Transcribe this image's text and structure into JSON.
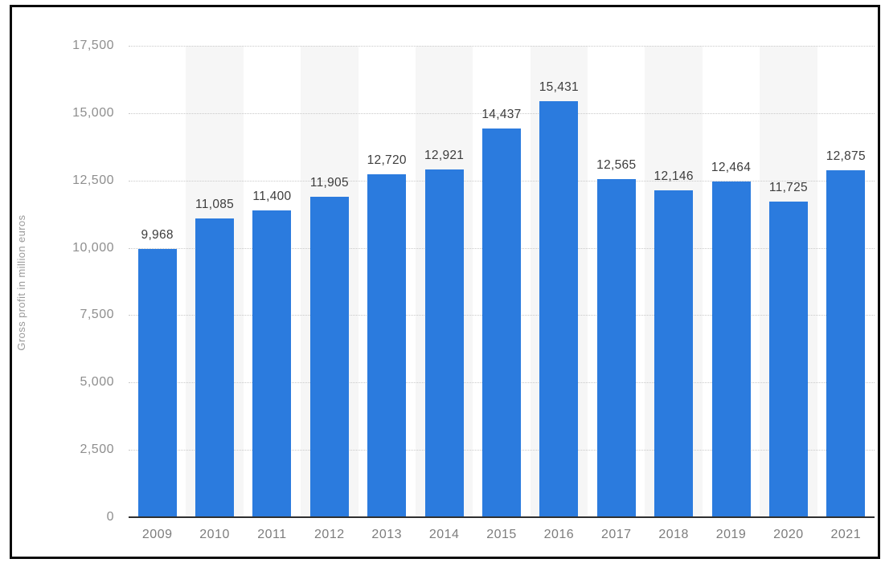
{
  "chart_data": {
    "type": "bar",
    "categories": [
      "2009",
      "2010",
      "2011",
      "2012",
      "2013",
      "2014",
      "2015",
      "2016",
      "2017",
      "2018",
      "2019",
      "2020",
      "2021"
    ],
    "values": [
      9968,
      11085,
      11400,
      11905,
      12720,
      12921,
      14437,
      15431,
      12565,
      12146,
      12464,
      11725,
      12875
    ],
    "value_labels": [
      "9,968",
      "11,085",
      "11,400",
      "11,905",
      "12,720",
      "12,921",
      "14,437",
      "15,431",
      "12,565",
      "12,146",
      "12,464",
      "11,725",
      "12,875"
    ],
    "title": "",
    "xlabel": "",
    "ylabel": "Gross profit in million euros",
    "ylim": [
      0,
      17500
    ],
    "ytick_interval": 2500,
    "ytick_labels": [
      "0",
      "2,500",
      "5,000",
      "7,500",
      "10,000",
      "12,500",
      "15,000",
      "17,500"
    ],
    "grid": "horizontal-dotted",
    "legend": "none",
    "colors": {
      "bar": "#2b7bde",
      "band": "#f6f6f6",
      "grid": "#c9c9c9",
      "axis_line": "#2f2f2f",
      "value_label": "#3d3d3d",
      "x_tick_label": "#7d7d7d",
      "y_tick_label": "#8e8e8e",
      "axis_title": "#9a9a9a",
      "frame_border": "#0b0b0b",
      "background": "#ffffff"
    }
  }
}
